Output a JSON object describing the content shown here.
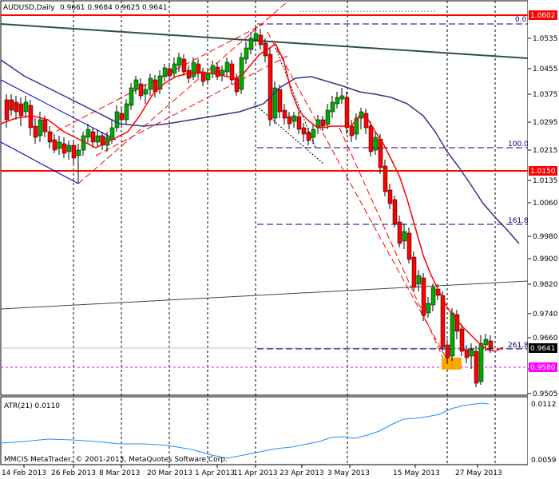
{
  "header": {
    "symbol": "AUDUSD,Daily",
    "ohlc": "0.9661 0.9684 0.9625 0.9641"
  },
  "price_axis": {
    "ticks": [
      "1.0535",
      "1.0455",
      "1.0375",
      "1.0295",
      "1.0215",
      "1.0135",
      "1.0060",
      "0.9980",
      "0.9900",
      "0.9820",
      "0.9740",
      "0.9660",
      "0.9580",
      "0.9505"
    ],
    "highlight_labels": [
      {
        "text": "1.0602",
        "bg": "#ff0000",
        "fg": "#ffffff"
      },
      {
        "text": "1.0150",
        "bg": "#ff0000",
        "fg": "#ffffff"
      },
      {
        "text": "0.9641",
        "bg": "#000000",
        "fg": "#ffffff"
      },
      {
        "text": "0.9580",
        "bg": "#ff00ff",
        "fg": "#ffffff"
      }
    ]
  },
  "fib_labels": [
    "0.0",
    "100.0",
    "161.8",
    "261.8"
  ],
  "date_axis": [
    "14 Feb 2013",
    "26 Feb 2013",
    "8 Mar 2013",
    "20 Mar 2013",
    "1 Apr 2013",
    "11 Apr 2013",
    "23 Apr 2013",
    "3 May 2013",
    "15 May 2013",
    "27 May 2013"
  ],
  "indicator": {
    "label": "ATR(21) 0.0110",
    "ticks": [
      "0.0112",
      "0.0059"
    ],
    "copyright": "MMCIS MetaTrader, © 2001-2013, MetaQuotes Software Corp."
  },
  "colors": {
    "bull": "#00aa00",
    "bear": "#ff0000",
    "ma_fast": "#ff0000",
    "ma_slow": "#333388",
    "atr": "#1e90ff",
    "trendline": "#2f4f4f"
  }
}
